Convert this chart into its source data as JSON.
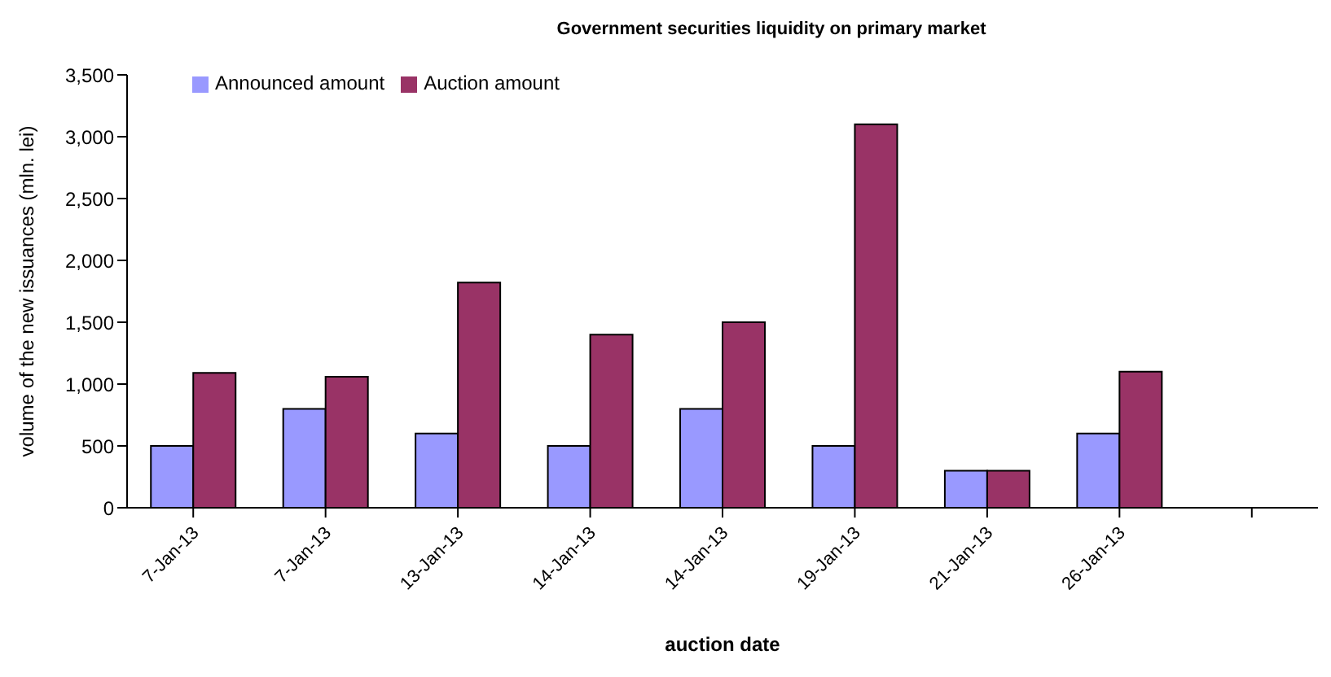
{
  "chart_data": {
    "type": "bar",
    "title": "Government securities liquidity on primary market",
    "xlabel": "auction date",
    "ylabel": "volume of the new issuances (mln. lei)",
    "categories": [
      "7-Jan-13",
      "7-Jan-13",
      "13-Jan-13",
      "14-Jan-13",
      "14-Jan-13",
      "19-Jan-13",
      "21-Jan-13",
      "26-Jan-13",
      null
    ],
    "series": [
      {
        "name": "Announced amount",
        "color": "#9999ff",
        "values": [
          500,
          800,
          600,
          500,
          800,
          500,
          300,
          600,
          null
        ]
      },
      {
        "name": "Auction amount",
        "color": "#993366",
        "values": [
          1090,
          1060,
          1820,
          1400,
          1500,
          3100,
          300,
          1100,
          null
        ]
      }
    ],
    "ylim": [
      0,
      3500
    ],
    "yticks": [
      {
        "value": 0,
        "label": "0"
      },
      {
        "value": 500,
        "label": "500"
      },
      {
        "value": 1000,
        "label": "1,000"
      },
      {
        "value": 1500,
        "label": "1,500"
      },
      {
        "value": 2000,
        "label": "2,000"
      },
      {
        "value": 2500,
        "label": "2,500"
      },
      {
        "value": 3000,
        "label": "3,000"
      },
      {
        "value": 3500,
        "label": "3,500"
      }
    ],
    "legend": "top left",
    "grid": false
  }
}
